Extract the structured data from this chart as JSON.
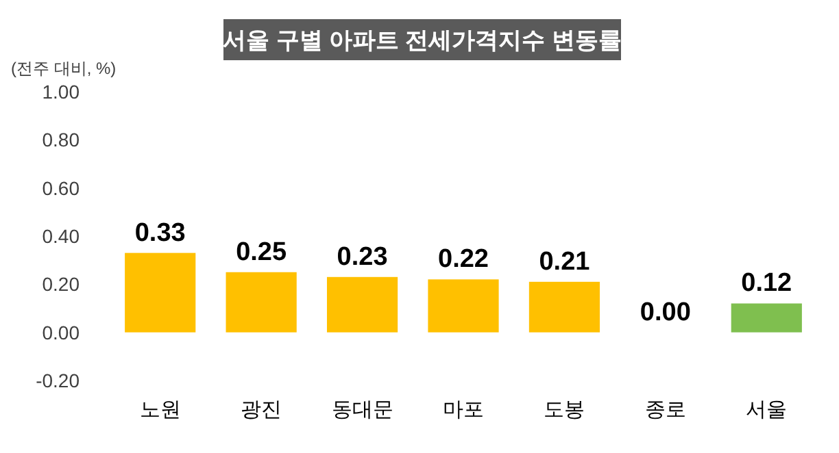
{
  "chart_data": {
    "type": "bar",
    "title": "서울 구별 아파트 전세가격지수 변동률",
    "ylabel": "(전주 대비, %)",
    "categories": [
      "노원",
      "광진",
      "동대문",
      "마포",
      "도봉",
      "종로",
      "서울"
    ],
    "values": [
      0.33,
      0.25,
      0.23,
      0.22,
      0.21,
      0.0,
      0.12
    ],
    "colors": [
      "#ffc000",
      "#ffc000",
      "#ffc000",
      "#ffc000",
      "#ffc000",
      "#ffc000",
      "#7fbf4f"
    ],
    "ylim": [
      -0.2,
      1.0
    ],
    "yticks": [
      {
        "value": -0.2,
        "label": "-0.20"
      },
      {
        "value": 0,
        "label": "0.00"
      },
      {
        "value": 0.2,
        "label": "0.20"
      },
      {
        "value": 0.4,
        "label": "0.40"
      },
      {
        "value": 0.6,
        "label": "0.60"
      },
      {
        "value": 0.8,
        "label": "0.80"
      },
      {
        "value": 1.0,
        "label": "1.00"
      }
    ],
    "value_labels": [
      "0.33",
      "0.25",
      "0.23",
      "0.22",
      "0.21",
      "0.00",
      "0.12"
    ],
    "grid": false
  }
}
